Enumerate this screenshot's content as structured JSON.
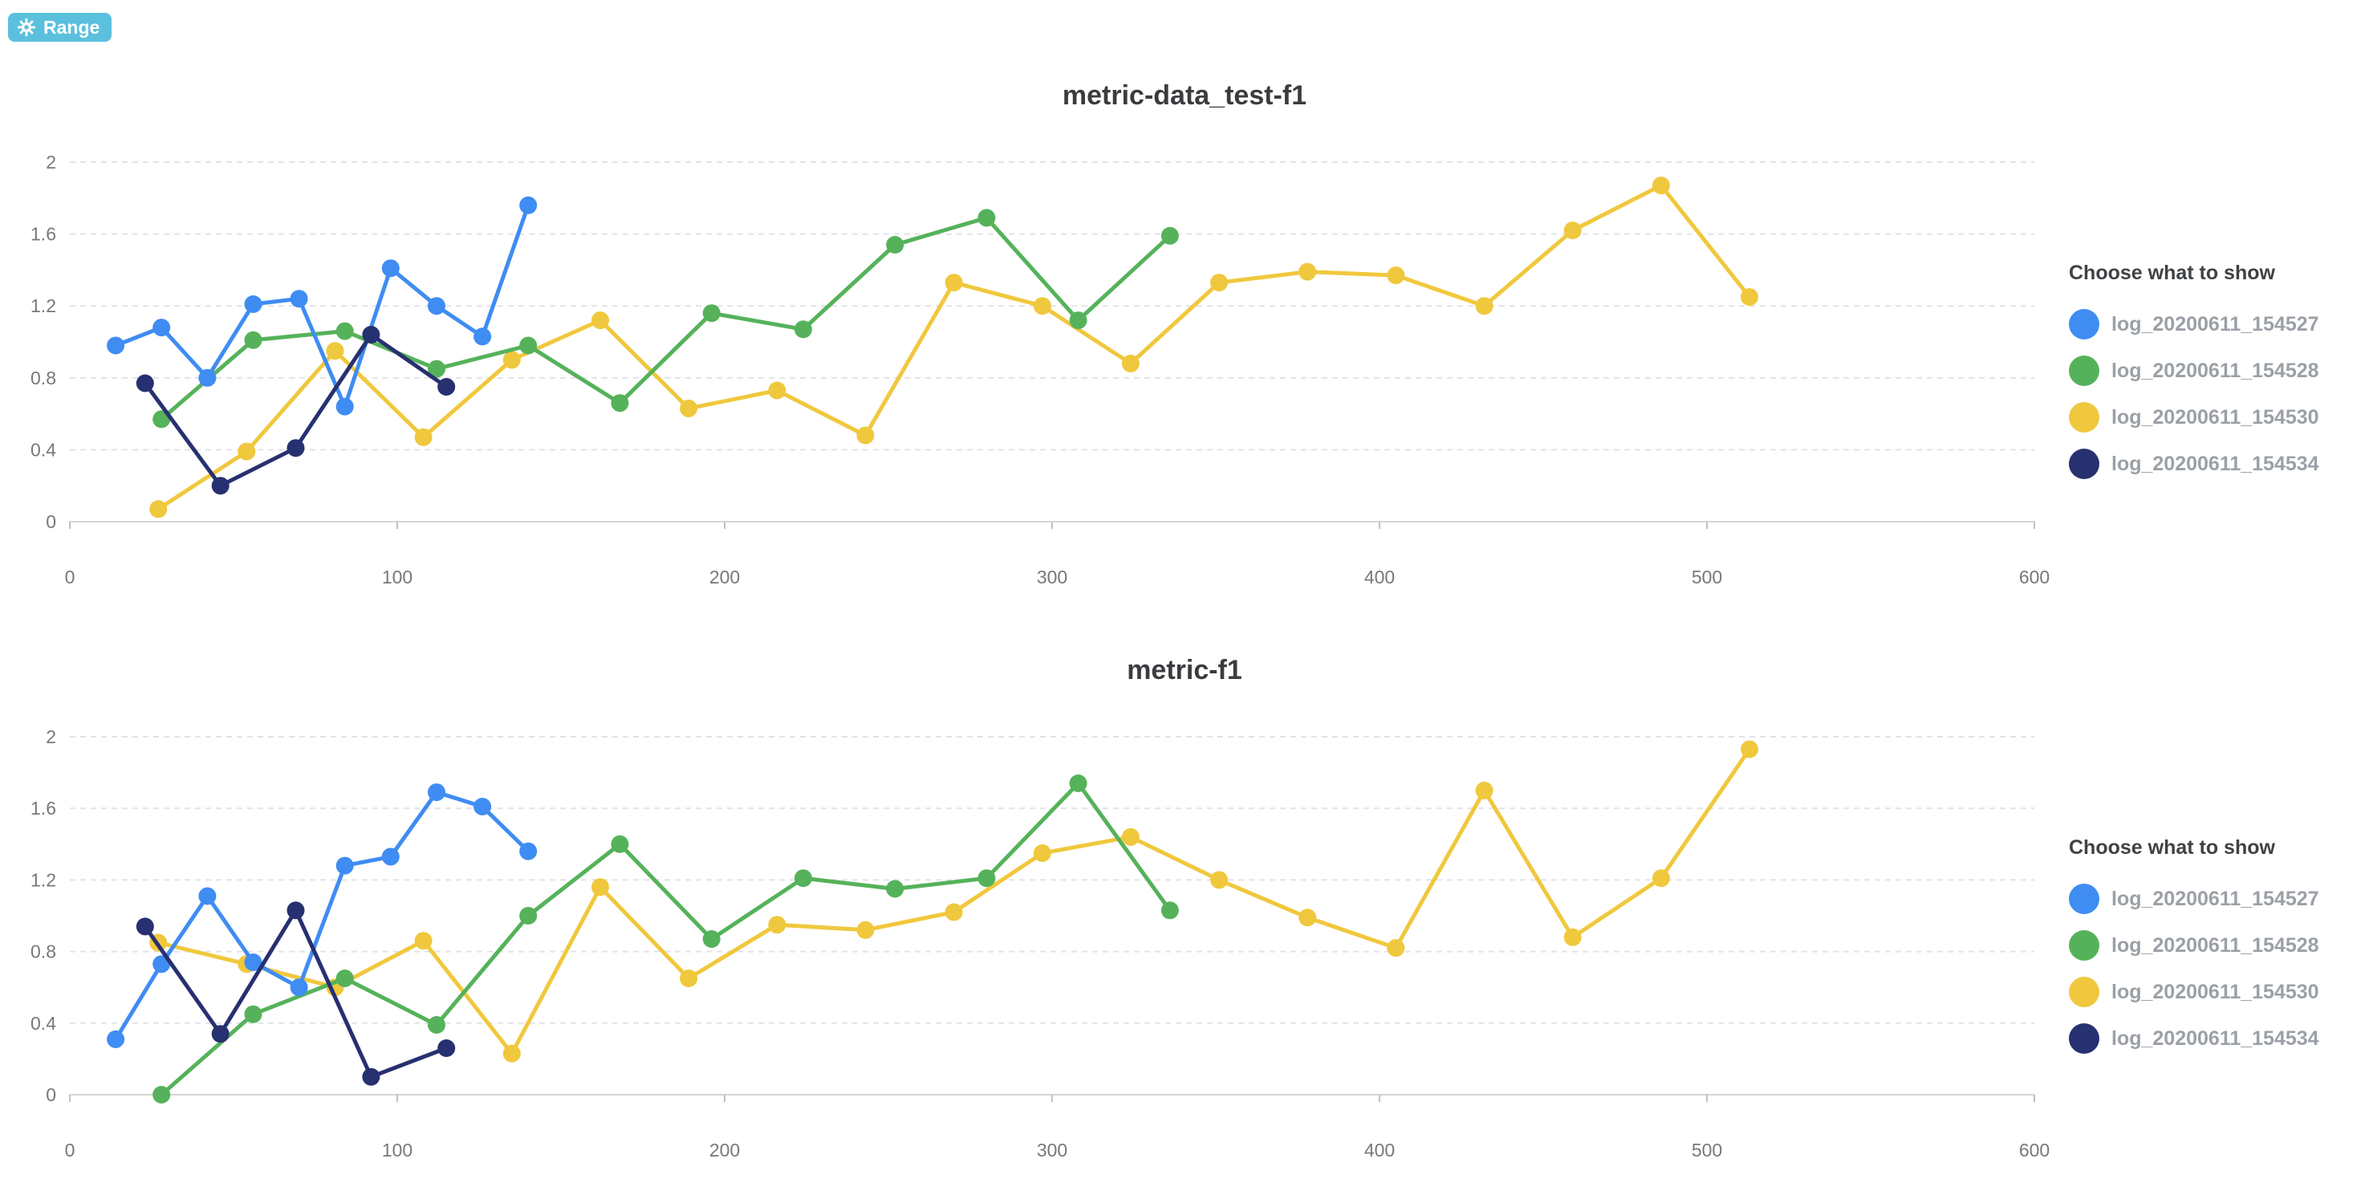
{
  "toolbar": {
    "range_label": "Range",
    "range_icon": "gear-icon",
    "range_bg": "#5bc0de"
  },
  "legend": {
    "title": "Choose what to show",
    "items": [
      {
        "label": "log_20200611_154527",
        "color": "#3f8cf3"
      },
      {
        "label": "log_20200611_154528",
        "color": "#55b25a"
      },
      {
        "label": "log_20200611_154530",
        "color": "#f0c83d"
      },
      {
        "label": "log_20200611_154534",
        "color": "#273070"
      }
    ]
  },
  "colors": {
    "grid": "#e1e3e7",
    "axis": "#d4d6d9",
    "tick": "#bfc1c4",
    "tick_text": "#76787b",
    "title_text": "#3a3c3f"
  },
  "chart_data": [
    {
      "type": "line",
      "title": "metric-data_test-f1",
      "xlabel": "",
      "ylabel": "",
      "xlim": [
        0,
        600
      ],
      "ylim": [
        0,
        2
      ],
      "x_ticks": [
        0,
        100,
        200,
        300,
        400,
        500,
        600
      ],
      "y_ticks": [
        0,
        0.4,
        0.8,
        1.2,
        1.6,
        2
      ],
      "grid": true,
      "legend_position": "right",
      "series": [
        {
          "name": "log_20200611_154527",
          "color": "#3f8cf3",
          "x": [
            14,
            28,
            42,
            56,
            70,
            84,
            98,
            112,
            126,
            140
          ],
          "y": [
            0.98,
            1.08,
            0.8,
            1.21,
            1.24,
            0.64,
            1.41,
            1.2,
            1.03,
            1.76
          ]
        },
        {
          "name": "log_20200611_154528",
          "color": "#55b25a",
          "x": [
            28,
            56,
            84,
            112,
            140,
            168,
            196,
            224,
            252,
            280,
            308,
            336
          ],
          "y": [
            0.57,
            1.01,
            1.06,
            0.85,
            0.98,
            0.66,
            1.16,
            1.07,
            1.54,
            1.69,
            1.12,
            1.59
          ]
        },
        {
          "name": "log_20200611_154530",
          "color": "#f0c83d",
          "x": [
            27,
            54,
            81,
            108,
            135,
            162,
            189,
            216,
            243,
            270,
            297,
            324,
            351,
            378,
            405,
            432,
            459,
            486,
            513
          ],
          "y": [
            0.07,
            0.39,
            0.95,
            0.47,
            0.9,
            1.12,
            0.63,
            0.73,
            0.48,
            1.33,
            1.2,
            0.88,
            1.33,
            1.39,
            1.37,
            1.2,
            1.62,
            1.87,
            1.25
          ]
        },
        {
          "name": "log_20200611_154534",
          "color": "#273070",
          "x": [
            23,
            46,
            69,
            92,
            115
          ],
          "y": [
            0.77,
            0.2,
            0.41,
            1.04,
            0.75
          ]
        }
      ]
    },
    {
      "type": "line",
      "title": "metric-f1",
      "xlabel": "",
      "ylabel": "",
      "xlim": [
        0,
        600
      ],
      "ylim": [
        0,
        2
      ],
      "x_ticks": [
        0,
        100,
        200,
        300,
        400,
        500,
        600
      ],
      "y_ticks": [
        0,
        0.4,
        0.8,
        1.2,
        1.6,
        2
      ],
      "grid": true,
      "legend_position": "right",
      "series": [
        {
          "name": "log_20200611_154527",
          "color": "#3f8cf3",
          "x": [
            14,
            28,
            42,
            56,
            70,
            84,
            98,
            112,
            126,
            140
          ],
          "y": [
            0.31,
            0.73,
            1.11,
            0.74,
            0.6,
            1.28,
            1.33,
            1.69,
            1.61,
            1.36
          ]
        },
        {
          "name": "log_20200611_154528",
          "color": "#55b25a",
          "x": [
            28,
            56,
            84,
            112,
            140,
            168,
            196,
            224,
            252,
            280,
            308,
            336
          ],
          "y": [
            0.0,
            0.45,
            0.65,
            0.39,
            1.0,
            1.4,
            0.87,
            1.21,
            1.15,
            1.21,
            1.74,
            1.03
          ]
        },
        {
          "name": "log_20200611_154530",
          "color": "#f0c83d",
          "x": [
            27,
            54,
            81,
            108,
            135,
            162,
            189,
            216,
            243,
            270,
            297,
            324,
            351,
            378,
            405,
            432,
            459,
            486,
            513
          ],
          "y": [
            0.85,
            0.73,
            0.6,
            0.86,
            0.23,
            1.16,
            0.65,
            0.95,
            0.92,
            1.02,
            1.35,
            1.44,
            1.2,
            0.99,
            0.82,
            1.7,
            0.88,
            1.21,
            1.93
          ]
        },
        {
          "name": "log_20200611_154534",
          "color": "#273070",
          "x": [
            23,
            46,
            69,
            92,
            115
          ],
          "y": [
            0.94,
            0.34,
            1.03,
            0.1,
            0.26
          ]
        }
      ]
    }
  ]
}
